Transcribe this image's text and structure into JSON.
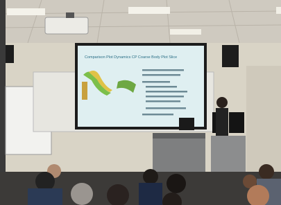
{
  "slide": {
    "title": "Comparison Plot Dynamics CP Coarse Body Plot Slice"
  }
}
